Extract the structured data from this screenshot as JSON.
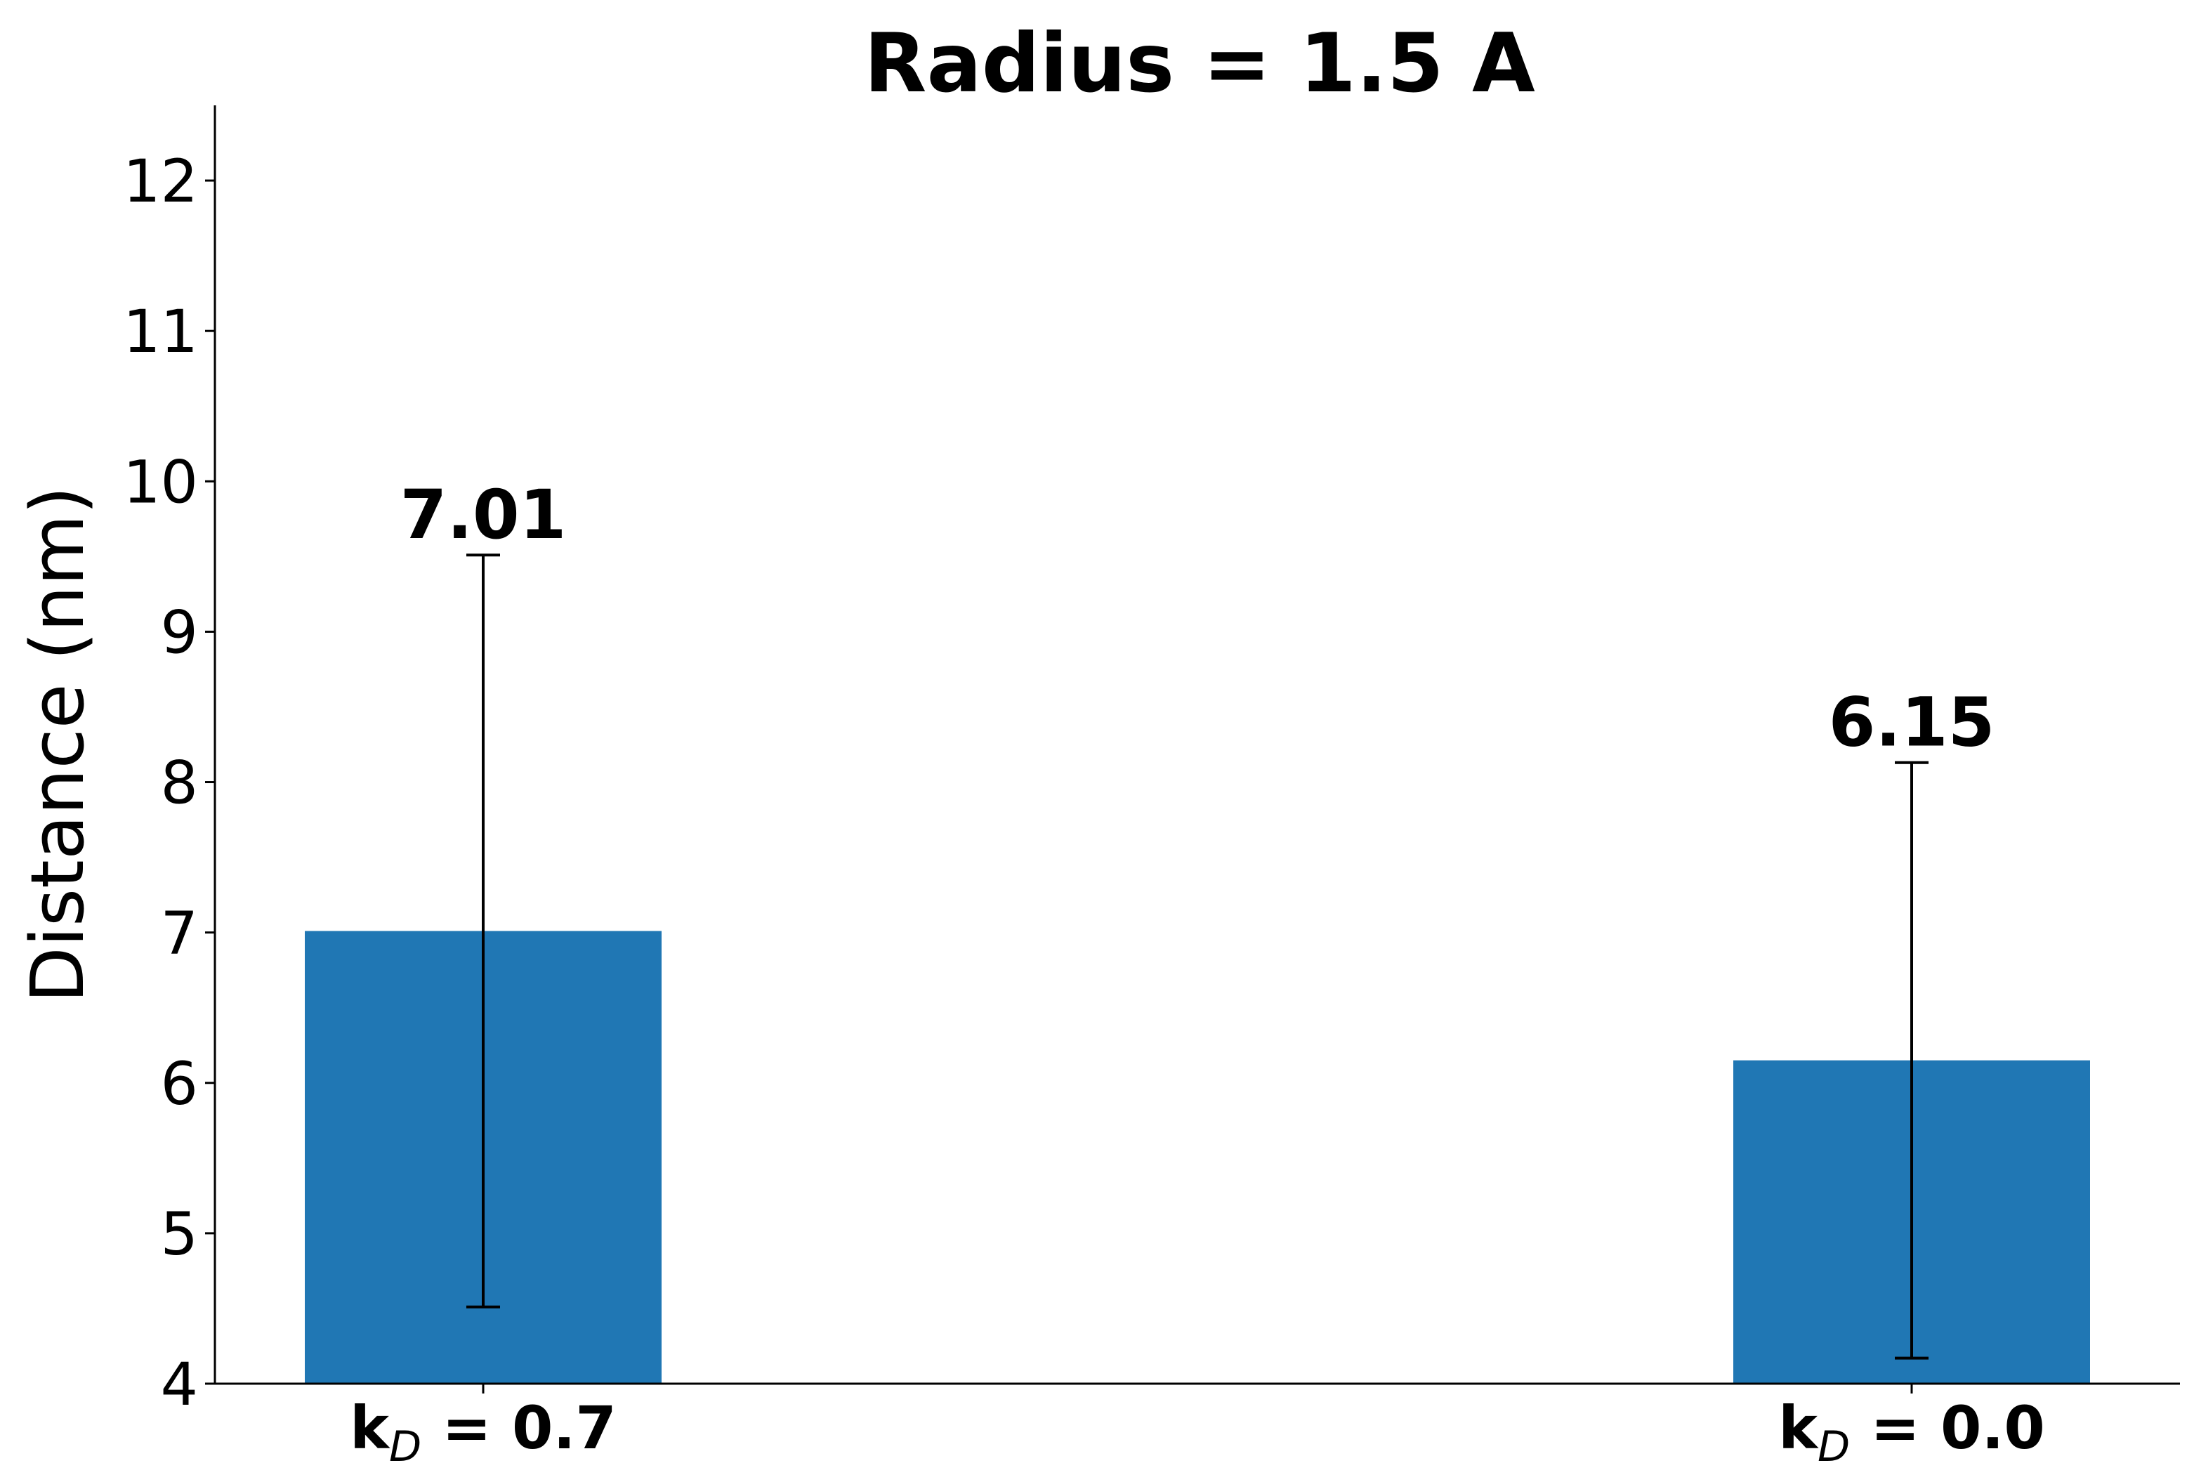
{
  "chart_data": {
    "type": "bar",
    "title": "Radius = 1.5 A",
    "xlabel": "",
    "ylabel": "Distance (nm)",
    "ylim": [
      4,
      12.5
    ],
    "yticks": [
      4,
      5,
      6,
      7,
      8,
      9,
      10,
      11,
      12
    ],
    "categories": [
      {
        "main": "k",
        "sub": "D",
        "rest": " = 0.7"
      },
      {
        "main": "k",
        "sub": "D",
        "rest": " = 0.0"
      }
    ],
    "values": [
      7.01,
      6.15
    ],
    "errors": [
      2.5,
      1.98
    ],
    "value_labels": [
      "7.01",
      "6.15"
    ],
    "bar_color": "#2077b4",
    "grid": false,
    "legend": "none"
  }
}
